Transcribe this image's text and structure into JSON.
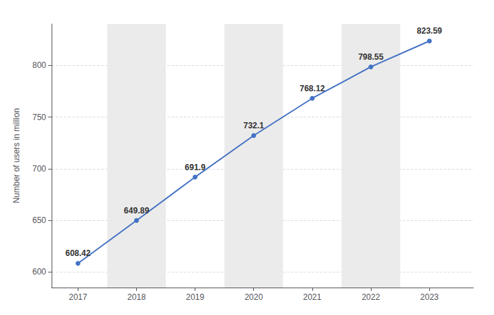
{
  "chart_data": {
    "type": "line",
    "x": [
      2017,
      2018,
      2019,
      2020,
      2021,
      2022,
      2023
    ],
    "values": [
      608.42,
      649.89,
      691.9,
      732.1,
      768.12,
      798.55,
      823.59
    ],
    "color": "#4472c4",
    "ylabel": "Number of users in million",
    "xlim": [
      2016.55,
      2023.75
    ],
    "xticks": [
      2017,
      2018,
      2019,
      2020,
      2021,
      2022,
      2023
    ],
    "ylim": [
      585,
      840
    ],
    "yticks": [
      600,
      650,
      700,
      750,
      800
    ],
    "grid": true,
    "marker": "circle",
    "data_labels": true
  }
}
